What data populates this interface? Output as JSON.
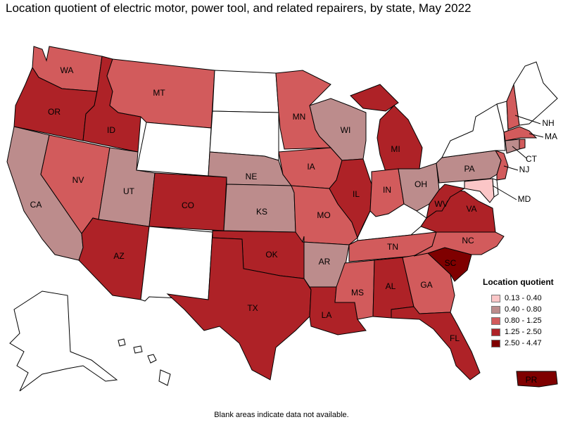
{
  "title": "Location quotient of electric motor, power tool, and related repairers, by state, May 2022",
  "footnote": "Blank areas indicate data not available.",
  "colors": {
    "no_data": "#ffffff",
    "c1": "#fbc6c7",
    "c2": "#bc8c8c",
    "c3": "#d25b5c",
    "c4": "#ae2227",
    "c5": "#7f0000"
  },
  "legend": {
    "title": "Location quotient",
    "items": [
      {
        "label": "0.13 - 0.40",
        "class": "c1"
      },
      {
        "label": "0.40 - 0.80",
        "class": "c2"
      },
      {
        "label": "0.80 - 1.25",
        "class": "c3"
      },
      {
        "label": "1.25 - 2.50",
        "class": "c4"
      },
      {
        "label": "2.50 - 4.47",
        "class": "c5"
      }
    ]
  },
  "states": {
    "WA": {
      "label": "WA",
      "class": "c3"
    },
    "OR": {
      "label": "OR",
      "class": "c4"
    },
    "CA": {
      "label": "CA",
      "class": "c2"
    },
    "ID": {
      "label": "ID",
      "class": "c4"
    },
    "NV": {
      "label": "NV",
      "class": "c3"
    },
    "MT": {
      "label": "MT",
      "class": "c3"
    },
    "UT": {
      "label": "UT",
      "class": "c2"
    },
    "AZ": {
      "label": "AZ",
      "class": "c4"
    },
    "WY": {
      "label": "",
      "class": "no_data"
    },
    "CO": {
      "label": "CO",
      "class": "c4"
    },
    "NM": {
      "label": "",
      "class": "no_data"
    },
    "ND": {
      "label": "",
      "class": "no_data"
    },
    "SD": {
      "label": "",
      "class": "no_data"
    },
    "NE": {
      "label": "NE",
      "class": "c2"
    },
    "KS": {
      "label": "KS",
      "class": "c2"
    },
    "OK": {
      "label": "OK",
      "class": "c4"
    },
    "TX": {
      "label": "TX",
      "class": "c4"
    },
    "MN": {
      "label": "MN",
      "class": "c3"
    },
    "IA": {
      "label": "IA",
      "class": "c3"
    },
    "MO": {
      "label": "MO",
      "class": "c3"
    },
    "AR": {
      "label": "AR",
      "class": "c2"
    },
    "LA": {
      "label": "LA",
      "class": "c4"
    },
    "WI": {
      "label": "WI",
      "class": "c2"
    },
    "IL": {
      "label": "IL",
      "class": "c4"
    },
    "MI": {
      "label": "MI",
      "class": "c4"
    },
    "IN": {
      "label": "IN",
      "class": "c3"
    },
    "OH": {
      "label": "OH",
      "class": "c2"
    },
    "KY": {
      "label": "",
      "class": "no_data"
    },
    "TN": {
      "label": "TN",
      "class": "c3"
    },
    "MS": {
      "label": "MS",
      "class": "c3"
    },
    "AL": {
      "label": "AL",
      "class": "c4"
    },
    "GA": {
      "label": "GA",
      "class": "c3"
    },
    "FL": {
      "label": "FL",
      "class": "c4"
    },
    "SC": {
      "label": "SC",
      "class": "c5"
    },
    "NC": {
      "label": "NC",
      "class": "c3"
    },
    "VA": {
      "label": "VA",
      "class": "c4"
    },
    "WV": {
      "label": "WV",
      "class": "c4"
    },
    "PA": {
      "label": "PA",
      "class": "c2"
    },
    "NY": {
      "label": "",
      "class": "no_data"
    },
    "VT": {
      "label": "",
      "class": "no_data"
    },
    "NH": {
      "label": "NH",
      "class": "c3"
    },
    "ME": {
      "label": "",
      "class": "no_data"
    },
    "MA": {
      "label": "MA",
      "class": "c3"
    },
    "CT": {
      "label": "CT",
      "class": "c2"
    },
    "RI": {
      "label": "",
      "class": "c3"
    },
    "NJ": {
      "label": "NJ",
      "class": "c3"
    },
    "DE": {
      "label": "",
      "class": "no_data"
    },
    "MD": {
      "label": "MD",
      "class": "c1"
    },
    "AK": {
      "label": "",
      "class": "no_data"
    },
    "HI": {
      "label": "",
      "class": "no_data"
    },
    "PR": {
      "label": "PR",
      "class": "c5"
    }
  }
}
